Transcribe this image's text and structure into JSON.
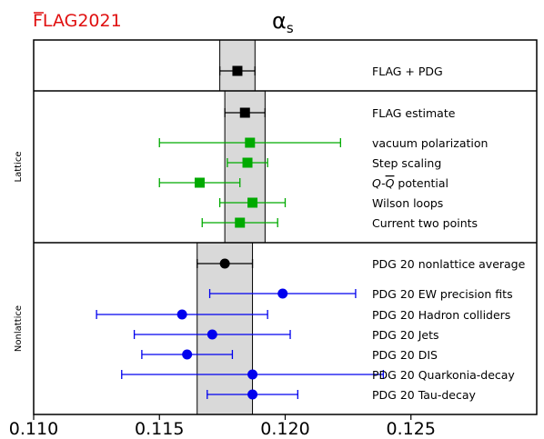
{
  "chart_data": {
    "type": "errorbar",
    "title": "αs",
    "title_main": "α",
    "title_sub": "s",
    "logo_flag": "FLAG",
    "logo_year": "2021",
    "xlim": [
      0.11,
      0.13
    ],
    "xticks": [
      0.11,
      0.115,
      0.12,
      0.125
    ],
    "xtick_labels": [
      "0.110",
      "0.115",
      "0.120",
      "0.125"
    ],
    "panels": [
      {
        "name": "",
        "band": [
          0.1174,
          0.1188
        ],
        "entries": [
          {
            "label": "FLAG + PDG",
            "value": 0.1181,
            "lo": 0.1174,
            "hi": 0.1188,
            "marker": "square",
            "color": "#000000"
          }
        ]
      },
      {
        "name": "Lattice",
        "band": [
          0.1176,
          0.1192
        ],
        "entries": [
          {
            "label": "FLAG estimate",
            "value": 0.1184,
            "lo": 0.1176,
            "hi": 0.1192,
            "marker": "square",
            "color": "#000000"
          },
          {
            "label": "vacuum polarization",
            "value": 0.1186,
            "lo": 0.115,
            "hi": 0.1222,
            "marker": "square",
            "color": "#00aa00"
          },
          {
            "label": "Step scaling",
            "value": 0.1185,
            "lo": 0.1177,
            "hi": 0.1193,
            "marker": "square",
            "color": "#00aa00"
          },
          {
            "label": "Q-Q̄ potential",
            "label_main": "Q-",
            "label_bar": "Q",
            "label_rest": " potential",
            "value": 0.1166,
            "lo": 0.115,
            "hi": 0.1182,
            "marker": "square",
            "color": "#00aa00"
          },
          {
            "label": "Wilson loops",
            "value": 0.1187,
            "lo": 0.1174,
            "hi": 0.12,
            "marker": "square",
            "color": "#00aa00"
          },
          {
            "label": "Current two points",
            "value": 0.1182,
            "lo": 0.1167,
            "hi": 0.1197,
            "marker": "square",
            "color": "#00aa00"
          }
        ]
      },
      {
        "name": "Nonlattice",
        "band": [
          0.1165,
          0.1187
        ],
        "entries": [
          {
            "label": "PDG 20 nonlattice average",
            "value": 0.1176,
            "lo": 0.1165,
            "hi": 0.1187,
            "marker": "circle",
            "color": "#000000"
          },
          {
            "label": "PDG 20 EW precision fits",
            "value": 0.1199,
            "lo": 0.117,
            "hi": 0.1228,
            "marker": "circle",
            "color": "#0000ee"
          },
          {
            "label": "PDG 20 Hadron colliders",
            "value": 0.1159,
            "lo": 0.1125,
            "hi": 0.1193,
            "marker": "circle",
            "color": "#0000ee"
          },
          {
            "label": "PDG 20 Jets",
            "value": 0.1171,
            "lo": 0.114,
            "hi": 0.1202,
            "marker": "circle",
            "color": "#0000ee"
          },
          {
            "label": "PDG 20 DIS",
            "value": 0.1161,
            "lo": 0.1143,
            "hi": 0.1179,
            "marker": "circle",
            "color": "#0000ee"
          },
          {
            "label": "PDG 20 Quarkonia-decay",
            "value": 0.1187,
            "lo": 0.1135,
            "hi": 0.1239,
            "marker": "circle",
            "color": "#0000ee"
          },
          {
            "label": "PDG 20 Tau-decay",
            "value": 0.1187,
            "lo": 0.1169,
            "hi": 0.1205,
            "marker": "circle",
            "color": "#0000ee"
          }
        ]
      }
    ]
  }
}
